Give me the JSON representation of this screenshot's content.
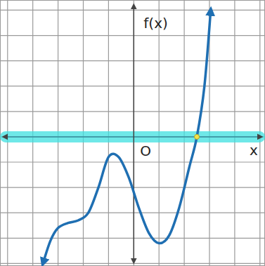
{
  "chart_data": {
    "type": "line",
    "x_label": "x",
    "y_label": "f(x)",
    "origin_label": "O",
    "series": [
      {
        "name": "f(x)",
        "color": "#1f6fb2",
        "x": [
          -3.6,
          -3.3,
          -3.0,
          -2.6,
          -2.2,
          -1.8,
          -1.4,
          -1.0,
          -0.6,
          -0.2,
          0.2,
          0.6,
          1.0,
          1.4,
          1.8,
          2.2,
          2.5,
          2.8,
          3.05
        ],
        "values": [
          -5.0,
          -4.1,
          -3.6,
          -3.4,
          -3.3,
          -3.0,
          -2.0,
          -0.8,
          -0.8,
          -1.6,
          -2.8,
          -3.8,
          -4.2,
          -3.9,
          -2.8,
          -1.2,
          0,
          2.0,
          5.0
        ]
      }
    ],
    "xlim": [
      -5.3,
      5.2
    ],
    "ylim": [
      -5.1,
      5.4
    ],
    "xticks": [
      -5,
      -4,
      -3,
      -2,
      -1,
      0,
      1,
      2,
      3,
      4,
      5
    ],
    "yticks": [
      -5,
      -4,
      -3,
      -2,
      -1,
      0,
      1,
      2,
      3,
      4,
      5
    ],
    "grid": true,
    "tick_labels": false
  }
}
